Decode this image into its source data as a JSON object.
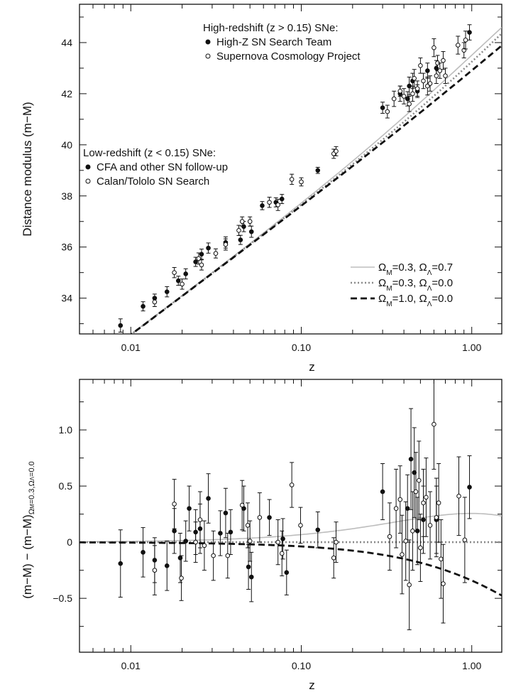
{
  "chart_data": [
    {
      "type": "scatter",
      "panel": "top",
      "xlabel": "z",
      "ylabel": "Distance modulus (m−M)",
      "xscale": "log",
      "xlim": [
        0.005,
        1.5
      ],
      "ylim": [
        32.6,
        45.5
      ],
      "xticks": [
        0.01,
        0.1,
        1.0
      ],
      "xtick_labels": [
        "0.01",
        "0.10",
        "1.00"
      ],
      "yticks": [
        34,
        36,
        38,
        40,
        42,
        44
      ],
      "ytick_labels": [
        "34",
        "36",
        "38",
        "40",
        "42",
        "44"
      ],
      "legend_groups": [
        {
          "title": "High-redshift (z > 0.15) SNe:",
          "entries": [
            {
              "marker": "filled",
              "label": "High-Z SN Search Team"
            },
            {
              "marker": "open",
              "label": "Supernova Cosmology Project"
            }
          ]
        },
        {
          "title": "Low-redshift (z < 0.15) SNe:",
          "entries": [
            {
              "marker": "filled",
              "label": "CFA and other SN follow-up"
            },
            {
              "marker": "open",
              "label": "Calan/Tololo SN Search"
            }
          ]
        }
      ],
      "model_legend": [
        {
          "style": "solid-light",
          "color": "#bbbbbb",
          "label_parts": [
            "Ω",
            "M",
            "=0.3, ",
            "Ω",
            "Λ",
            "=0.7"
          ]
        },
        {
          "style": "dotted",
          "color": "#8a8a8a",
          "label_parts": [
            "Ω",
            "M",
            "=0.3, ",
            "Ω",
            "Λ",
            "=0.0"
          ]
        },
        {
          "style": "dashed",
          "color": "#111111",
          "label_parts": [
            "Ω",
            "M",
            "=1.0, ",
            "Ω",
            "Λ",
            "=0.0"
          ]
        }
      ],
      "series": [
        {
          "name": "CFA and other SN follow-up",
          "marker": "filled",
          "points": [
            {
              "x": 0.0087,
              "y": 32.93,
              "err": 0.26
            },
            {
              "x": 0.0118,
              "y": 33.68,
              "err": 0.18
            },
            {
              "x": 0.0138,
              "y": 34.0,
              "err": 0.16
            },
            {
              "x": 0.0163,
              "y": 34.25,
              "err": 0.2
            },
            {
              "x": 0.019,
              "y": 34.68,
              "err": 0.18
            },
            {
              "x": 0.021,
              "y": 34.95,
              "err": 0.2
            },
            {
              "x": 0.024,
              "y": 35.42,
              "err": 0.18
            },
            {
              "x": 0.026,
              "y": 35.72,
              "err": 0.2
            },
            {
              "x": 0.0285,
              "y": 35.96,
              "err": 0.2
            },
            {
              "x": 0.036,
              "y": 36.18,
              "err": 0.22
            },
            {
              "x": 0.044,
              "y": 36.28,
              "err": 0.18
            },
            {
              "x": 0.046,
              "y": 36.8,
              "err": 0.2
            },
            {
              "x": 0.051,
              "y": 36.6,
              "err": 0.22
            },
            {
              "x": 0.059,
              "y": 37.62,
              "err": 0.16
            },
            {
              "x": 0.071,
              "y": 37.75,
              "err": 0.18
            },
            {
              "x": 0.077,
              "y": 37.88,
              "err": 0.18
            },
            {
              "x": 0.125,
              "y": 39.0,
              "err": 0.12
            }
          ]
        },
        {
          "name": "Calan/Tololo SN Search",
          "marker": "open",
          "points": [
            {
              "x": 0.0138,
              "y": 33.85,
              "err": 0.18
            },
            {
              "x": 0.018,
              "y": 35.0,
              "err": 0.2
            },
            {
              "x": 0.02,
              "y": 34.55,
              "err": 0.2
            },
            {
              "x": 0.025,
              "y": 35.55,
              "err": 0.22
            },
            {
              "x": 0.026,
              "y": 35.3,
              "err": 0.2
            },
            {
              "x": 0.0315,
              "y": 35.75,
              "err": 0.18
            },
            {
              "x": 0.036,
              "y": 36.1,
              "err": 0.22
            },
            {
              "x": 0.043,
              "y": 36.65,
              "err": 0.2
            },
            {
              "x": 0.045,
              "y": 37.0,
              "err": 0.18
            },
            {
              "x": 0.05,
              "y": 37.0,
              "err": 0.18
            },
            {
              "x": 0.065,
              "y": 37.75,
              "err": 0.2
            },
            {
              "x": 0.073,
              "y": 37.65,
              "err": 0.22
            },
            {
              "x": 0.088,
              "y": 38.65,
              "err": 0.2
            },
            {
              "x": 0.1,
              "y": 38.55,
              "err": 0.16
            },
            {
              "x": 0.155,
              "y": 39.65,
              "err": 0.18
            },
            {
              "x": 0.16,
              "y": 39.75,
              "err": 0.18
            }
          ]
        },
        {
          "name": "High-Z SN Search Team",
          "marker": "filled",
          "points": [
            {
              "x": 0.3,
              "y": 41.45,
              "err": 0.22
            },
            {
              "x": 0.38,
              "y": 42.0,
              "err": 0.3
            },
            {
              "x": 0.42,
              "y": 41.8,
              "err": 0.28
            },
            {
              "x": 0.43,
              "y": 42.3,
              "err": 0.35
            },
            {
              "x": 0.45,
              "y": 42.5,
              "err": 0.3
            },
            {
              "x": 0.48,
              "y": 42.1,
              "err": 0.25
            },
            {
              "x": 0.55,
              "y": 42.9,
              "err": 0.3
            },
            {
              "x": 0.62,
              "y": 43.0,
              "err": 0.3
            },
            {
              "x": 0.97,
              "y": 44.4,
              "err": 0.3
            }
          ]
        },
        {
          "name": "Supernova Cosmology Project",
          "marker": "open",
          "points": [
            {
              "x": 0.32,
              "y": 41.3,
              "err": 0.25
            },
            {
              "x": 0.35,
              "y": 41.8,
              "err": 0.3
            },
            {
              "x": 0.38,
              "y": 42.1,
              "err": 0.2
            },
            {
              "x": 0.4,
              "y": 41.9,
              "err": 0.3
            },
            {
              "x": 0.43,
              "y": 41.6,
              "err": 0.3
            },
            {
              "x": 0.45,
              "y": 42.0,
              "err": 0.3
            },
            {
              "x": 0.46,
              "y": 42.6,
              "err": 0.35
            },
            {
              "x": 0.48,
              "y": 42.2,
              "err": 0.3
            },
            {
              "x": 0.5,
              "y": 43.1,
              "err": 0.3
            },
            {
              "x": 0.52,
              "y": 42.5,
              "err": 0.3
            },
            {
              "x": 0.55,
              "y": 42.3,
              "err": 0.35
            },
            {
              "x": 0.57,
              "y": 42.4,
              "err": 0.3
            },
            {
              "x": 0.6,
              "y": 43.8,
              "err": 0.35
            },
            {
              "x": 0.62,
              "y": 42.7,
              "err": 0.3
            },
            {
              "x": 0.63,
              "y": 43.2,
              "err": 0.3
            },
            {
              "x": 0.65,
              "y": 42.9,
              "err": 0.3
            },
            {
              "x": 0.68,
              "y": 43.3,
              "err": 0.35
            },
            {
              "x": 0.7,
              "y": 42.7,
              "err": 0.3
            },
            {
              "x": 0.83,
              "y": 43.9,
              "err": 0.35
            },
            {
              "x": 0.9,
              "y": 43.7,
              "err": 0.3
            },
            {
              "x": 0.92,
              "y": 44.1,
              "err": 0.35
            }
          ]
        }
      ]
    },
    {
      "type": "scatter",
      "panel": "bottom",
      "xlabel": "z",
      "ylabel_parts": [
        "(m−M) − (m−M)",
        "Ω",
        "M",
        "=0.3,",
        "Ω",
        "Λ",
        "=0.0"
      ],
      "xscale": "log",
      "xlim": [
        0.005,
        1.5
      ],
      "ylim": [
        -0.98,
        1.45
      ],
      "xticks": [
        0.01,
        0.1,
        1.0
      ],
      "xtick_labels": [
        "0.01",
        "0.10",
        "1.00"
      ],
      "yticks": [
        -0.5,
        0,
        0.5,
        1.0
      ],
      "ytick_labels": [
        "−0.5",
        "0",
        "0.5",
        "1.0"
      ],
      "series": [
        {
          "name": "filled",
          "marker": "filled",
          "points": [
            {
              "x": 0.0087,
              "y": -0.19,
              "err": 0.3
            },
            {
              "x": 0.0118,
              "y": -0.09,
              "err": 0.22
            },
            {
              "x": 0.0138,
              "y": -0.16,
              "err": 0.2
            },
            {
              "x": 0.0163,
              "y": -0.21,
              "err": 0.22
            },
            {
              "x": 0.018,
              "y": 0.1,
              "err": 0.2
            },
            {
              "x": 0.0195,
              "y": -0.14,
              "err": 0.22
            },
            {
              "x": 0.021,
              "y": 0.01,
              "err": 0.18
            },
            {
              "x": 0.022,
              "y": 0.3,
              "err": 0.2
            },
            {
              "x": 0.024,
              "y": 0.09,
              "err": 0.2
            },
            {
              "x": 0.0255,
              "y": 0.12,
              "err": 0.22
            },
            {
              "x": 0.0285,
              "y": 0.39,
              "err": 0.22
            },
            {
              "x": 0.0335,
              "y": 0.08,
              "err": 0.2
            },
            {
              "x": 0.036,
              "y": 0.26,
              "err": 0.22
            },
            {
              "x": 0.0385,
              "y": 0.09,
              "err": 0.2
            },
            {
              "x": 0.046,
              "y": 0.3,
              "err": 0.2
            },
            {
              "x": 0.049,
              "y": -0.22,
              "err": 0.2
            },
            {
              "x": 0.051,
              "y": -0.31,
              "err": 0.22
            },
            {
              "x": 0.065,
              "y": 0.22,
              "err": 0.16
            },
            {
              "x": 0.078,
              "y": 0.03,
              "err": 0.18
            },
            {
              "x": 0.082,
              "y": -0.27,
              "err": 0.2
            },
            {
              "x": 0.125,
              "y": 0.11,
              "err": 0.16
            },
            {
              "x": 0.3,
              "y": 0.45,
              "err": 0.25
            },
            {
              "x": 0.42,
              "y": 0.3,
              "err": 0.3
            },
            {
              "x": 0.44,
              "y": 0.74,
              "err": 0.45
            },
            {
              "x": 0.46,
              "y": 0.62,
              "err": 0.4
            },
            {
              "x": 0.48,
              "y": 0.1,
              "err": 0.3
            },
            {
              "x": 0.52,
              "y": 0.2,
              "err": 0.3
            },
            {
              "x": 0.62,
              "y": 0.2,
              "err": 0.3
            },
            {
              "x": 0.97,
              "y": 0.49,
              "err": 0.28
            }
          ]
        },
        {
          "name": "open",
          "marker": "open",
          "points": [
            {
              "x": 0.0138,
              "y": -0.25,
              "err": 0.22
            },
            {
              "x": 0.018,
              "y": 0.34,
              "err": 0.22
            },
            {
              "x": 0.0198,
              "y": -0.32,
              "err": 0.2
            },
            {
              "x": 0.024,
              "y": 0.0,
              "err": 0.18
            },
            {
              "x": 0.0255,
              "y": 0.2,
              "err": 0.25
            },
            {
              "x": 0.027,
              "y": -0.03,
              "err": 0.22
            },
            {
              "x": 0.0305,
              "y": -0.12,
              "err": 0.22
            },
            {
              "x": 0.037,
              "y": -0.12,
              "err": 0.2
            },
            {
              "x": 0.045,
              "y": 0.33,
              "err": 0.22
            },
            {
              "x": 0.0485,
              "y": 0.15,
              "err": 0.2
            },
            {
              "x": 0.05,
              "y": 0.01,
              "err": 0.18
            },
            {
              "x": 0.057,
              "y": 0.22,
              "err": 0.22
            },
            {
              "x": 0.073,
              "y": 0.0,
              "err": 0.2
            },
            {
              "x": 0.077,
              "y": -0.1,
              "err": 0.2
            },
            {
              "x": 0.088,
              "y": 0.51,
              "err": 0.2
            },
            {
              "x": 0.099,
              "y": 0.15,
              "err": 0.16
            },
            {
              "x": 0.155,
              "y": -0.14,
              "err": 0.18
            },
            {
              "x": 0.16,
              "y": 0.0,
              "err": 0.18
            },
            {
              "x": 0.33,
              "y": 0.05,
              "err": 0.3
            },
            {
              "x": 0.36,
              "y": 0.3,
              "err": 0.35
            },
            {
              "x": 0.38,
              "y": 0.38,
              "err": 0.3
            },
            {
              "x": 0.39,
              "y": -0.11,
              "err": 0.35
            },
            {
              "x": 0.41,
              "y": 0.01,
              "err": 0.35
            },
            {
              "x": 0.43,
              "y": -0.38,
              "err": 0.4
            },
            {
              "x": 0.45,
              "y": 0.1,
              "err": 0.35
            },
            {
              "x": 0.47,
              "y": 0.45,
              "err": 0.35
            },
            {
              "x": 0.49,
              "y": 0.55,
              "err": 0.35
            },
            {
              "x": 0.5,
              "y": -0.05,
              "err": 0.3
            },
            {
              "x": 0.52,
              "y": 0.35,
              "err": 0.3
            },
            {
              "x": 0.54,
              "y": 0.4,
              "err": 0.35
            },
            {
              "x": 0.57,
              "y": 0.15,
              "err": 0.3
            },
            {
              "x": 0.6,
              "y": 1.05,
              "err": 0.4
            },
            {
              "x": 0.62,
              "y": 0.22,
              "err": 0.35
            },
            {
              "x": 0.64,
              "y": 0.35,
              "err": 0.35
            },
            {
              "x": 0.66,
              "y": -0.15,
              "err": 0.35
            },
            {
              "x": 0.68,
              "y": -0.37,
              "err": 0.35
            },
            {
              "x": 0.84,
              "y": 0.41,
              "err": 0.35
            },
            {
              "x": 0.91,
              "y": 0.02,
              "err": 0.38
            }
          ]
        }
      ]
    }
  ]
}
